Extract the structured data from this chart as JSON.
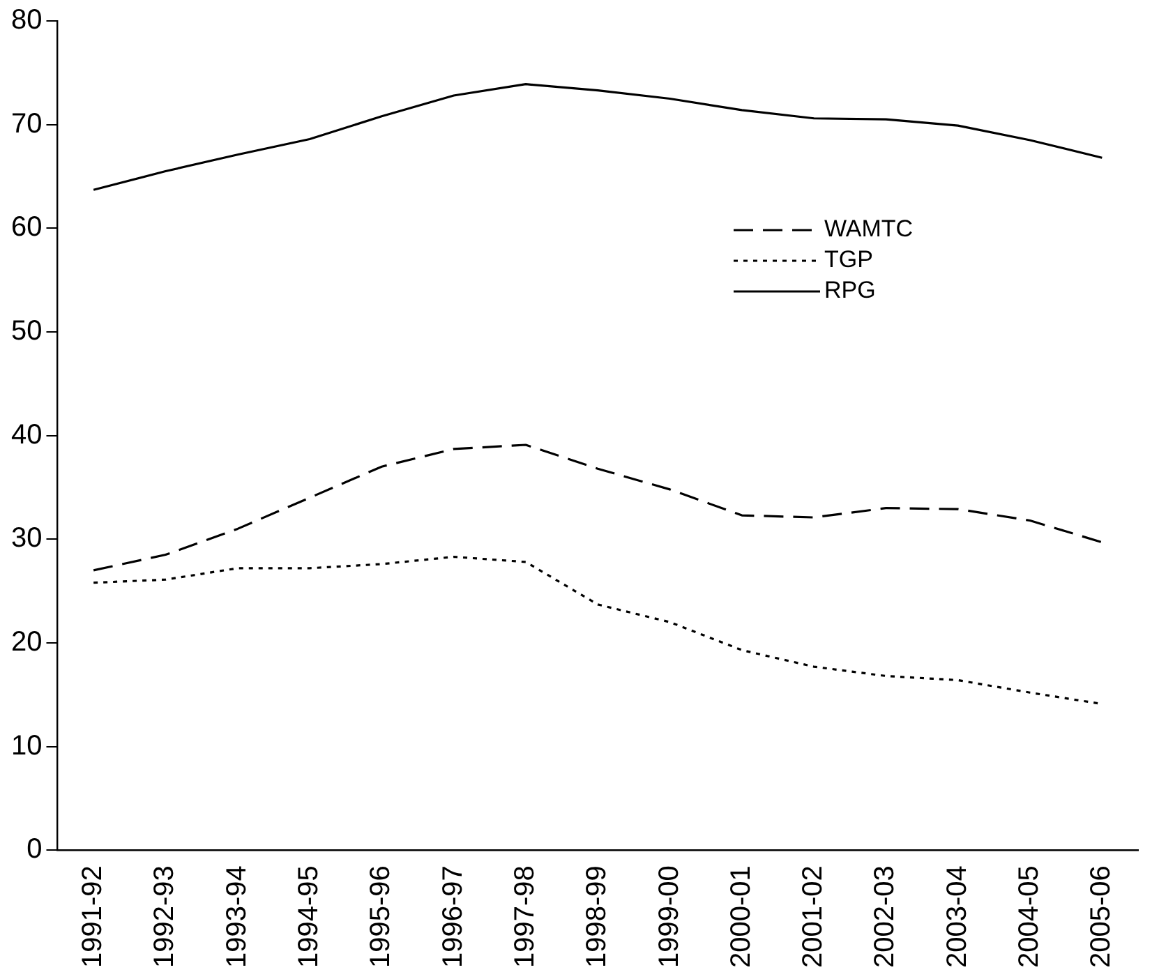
{
  "chart_data": {
    "type": "line",
    "categories": [
      "1991-92",
      "1992-93",
      "1993-94",
      "1994-95",
      "1995-96",
      "1996-97",
      "1997-98",
      "1998-99",
      "1999-00",
      "2000-01",
      "2001-02",
      "2002-03",
      "2003-04",
      "2004-05",
      "2005-06"
    ],
    "ylim": [
      0,
      80
    ],
    "yticks": [
      0,
      10,
      20,
      30,
      40,
      50,
      60,
      70,
      80
    ],
    "grid": false,
    "legend": "top right",
    "marker": "none",
    "series": [
      {
        "name": "WAMTC",
        "color": "#000000",
        "line_style": "dashed",
        "values": [
          27,
          28.5,
          31,
          34,
          37,
          38.7,
          39.1,
          36.8,
          34.8,
          32.3,
          32.1,
          33,
          32.9,
          31.8,
          29.7
        ]
      },
      {
        "name": "TGP",
        "color": "#000000",
        "line_style": "dotted",
        "values": [
          25.8,
          26.1,
          27.2,
          27.2,
          27.6,
          28.3,
          27.8,
          23.7,
          22,
          19.3,
          17.7,
          16.8,
          16.4,
          15.2,
          14.1
        ]
      },
      {
        "name": "RPG",
        "color": "#000000",
        "line_style": "solid",
        "values": [
          63.7,
          65.5,
          67.1,
          68.6,
          70.8,
          72.8,
          73.9,
          73.3,
          72.5,
          71.4,
          70.6,
          70.5,
          69.9,
          68.5,
          66.8
        ]
      }
    ]
  }
}
